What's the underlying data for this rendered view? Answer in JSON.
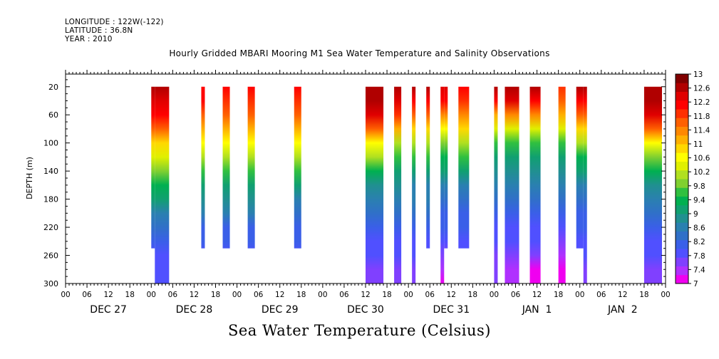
{
  "header": {
    "longitude": "LONGITUDE : 122W(-122)",
    "latitude": "LATITUDE : 36.8N",
    "year": "YEAR : 2010"
  },
  "footer_title": "Sea Water Temperature (Celsius)",
  "chart_data": {
    "type": "heatmap",
    "title": "Hourly Gridded MBARI Mooring M1 Sea Water Temperature and Salinity Observations",
    "xlabel": "",
    "ylabel": "DEPTH (m)",
    "colorbar_label": "Sea Water Temperature (Celsius)",
    "y_ticks": [
      20,
      60,
      100,
      140,
      180,
      220,
      260,
      300
    ],
    "ylim": [
      300,
      2
    ],
    "xlim_hours": [
      0,
      168
    ],
    "x_hour_ticks": [
      "00",
      "06",
      "12",
      "18",
      "00",
      "06",
      "12",
      "18",
      "00",
      "06",
      "12",
      "18",
      "00",
      "06",
      "12",
      "18",
      "00",
      "06",
      "12",
      "18",
      "00",
      "06",
      "12",
      "18",
      "00",
      "06",
      "12",
      "18",
      "00"
    ],
    "x_day_labels": [
      "DEC 27",
      "DEC 28",
      "DEC 29",
      "DEC 30",
      "DEC 31",
      "JAN  1",
      "JAN  2"
    ],
    "colorbar_ticks": [
      "13",
      "12.6",
      "12.2",
      "11.8",
      "11.4",
      "11",
      "10.6",
      "10.2",
      "9.8",
      "9.4",
      "9",
      "8.6",
      "8.2",
      "7.8",
      "7.4",
      "7"
    ],
    "colorbar_colors": [
      "#f000f0",
      "#b030ff",
      "#8040ff",
      "#5050ff",
      "#3a5fe8",
      "#3070c8",
      "#2a80b0",
      "#209090",
      "#10a070",
      "#00b050",
      "#30c040",
      "#80d030",
      "#b0e020",
      "#e0f000",
      "#ffff00",
      "#ffd800",
      "#ffb000",
      "#ff8800",
      "#ff6000",
      "#ff3000",
      "#ff0000",
      "#e00000",
      "#b00000",
      "#800000"
    ],
    "colorbar_range": [
      7,
      13
    ],
    "profile_depths": [
      20,
      40,
      60,
      80,
      100,
      120,
      140,
      160,
      180,
      200,
      220,
      240,
      260,
      280,
      300
    ],
    "observations": [
      {
        "start": 24,
        "end": 25,
        "bottom": 250,
        "profile": [
          12.5,
          12.3,
          12.0,
          11.5,
          10.8,
          10.3,
          9.9,
          9.4,
          9.0,
          8.6,
          8.3,
          8.1,
          7.9,
          7.8,
          7.8
        ]
      },
      {
        "start": 25,
        "end": 29,
        "bottom": 300,
        "profile": [
          12.5,
          12.3,
          12.0,
          11.5,
          10.8,
          10.3,
          9.9,
          9.4,
          9.0,
          8.6,
          8.3,
          8.1,
          7.9,
          7.8,
          7.8
        ]
      },
      {
        "start": 38,
        "end": 39,
        "bottom": 250,
        "profile": [
          12.2,
          12.0,
          11.7,
          11.2,
          10.6,
          10.1,
          9.6,
          9.2,
          8.8,
          8.5,
          8.2,
          8.0,
          7.9,
          7.8,
          7.8
        ]
      },
      {
        "start": 44,
        "end": 46,
        "bottom": 250,
        "profile": [
          12.0,
          11.8,
          11.6,
          11.1,
          10.6,
          10.1,
          9.6,
          9.2,
          8.8,
          8.5,
          8.2,
          8.0,
          7.9,
          7.8,
          7.8
        ]
      },
      {
        "start": 51,
        "end": 53,
        "bottom": 250,
        "profile": [
          12.0,
          11.8,
          11.6,
          11.1,
          10.5,
          10.0,
          9.5,
          9.1,
          8.8,
          8.5,
          8.2,
          8.0,
          7.9,
          7.8,
          7.8
        ]
      },
      {
        "start": 64,
        "end": 66,
        "bottom": 250,
        "profile": [
          12.0,
          11.8,
          11.5,
          11.0,
          10.5,
          10.0,
          9.5,
          9.1,
          8.7,
          8.4,
          8.2,
          8.0,
          7.9,
          7.8,
          7.8
        ]
      },
      {
        "start": 84,
        "end": 89,
        "bottom": 300,
        "profile": [
          12.6,
          12.5,
          12.3,
          11.6,
          10.6,
          10.0,
          9.3,
          8.9,
          8.6,
          8.3,
          8.1,
          7.9,
          7.8,
          7.7,
          7.7
        ]
      },
      {
        "start": 92,
        "end": 94,
        "bottom": 300,
        "profile": [
          12.5,
          12.3,
          11.8,
          11.0,
          10.2,
          9.6,
          9.1,
          8.8,
          8.5,
          8.3,
          8.1,
          7.9,
          7.8,
          7.7,
          7.7
        ]
      },
      {
        "start": 97,
        "end": 98,
        "bottom": 300,
        "profile": [
          12.5,
          12.2,
          11.6,
          10.8,
          10.0,
          9.5,
          9.0,
          8.7,
          8.5,
          8.3,
          8.1,
          7.9,
          7.8,
          7.7,
          7.7
        ]
      },
      {
        "start": 101,
        "end": 102,
        "bottom": 250,
        "profile": [
          12.5,
          12.2,
          11.6,
          10.8,
          10.0,
          9.5,
          9.0,
          8.7,
          8.5,
          8.3,
          8.1,
          7.9,
          7.8,
          7.7,
          7.7
        ]
      },
      {
        "start": 105,
        "end": 106,
        "bottom": 300,
        "profile": [
          12.4,
          12.0,
          11.4,
          10.7,
          9.9,
          9.4,
          9.0,
          8.7,
          8.4,
          8.2,
          8.0,
          7.8,
          7.6,
          7.4,
          7.2
        ]
      },
      {
        "start": 106,
        "end": 107,
        "bottom": 250,
        "profile": [
          12.4,
          12.0,
          11.4,
          10.7,
          9.9,
          9.4,
          9.0,
          8.7,
          8.4,
          8.2,
          8.0,
          7.8,
          7.6,
          7.4,
          7.2
        ]
      },
      {
        "start": 110,
        "end": 113,
        "bottom": 250,
        "profile": [
          12.1,
          11.8,
          11.4,
          10.8,
          10.1,
          9.5,
          9.0,
          8.7,
          8.4,
          8.2,
          8.0,
          7.9,
          7.8,
          7.7,
          7.7
        ]
      },
      {
        "start": 120,
        "end": 121,
        "bottom": 300,
        "profile": [
          12.6,
          12.2,
          11.2,
          10.3,
          9.6,
          9.1,
          8.8,
          8.5,
          8.3,
          8.1,
          7.9,
          7.8,
          7.7,
          7.6,
          7.5
        ]
      },
      {
        "start": 123,
        "end": 127,
        "bottom": 300,
        "profile": [
          12.7,
          12.4,
          11.4,
          10.4,
          9.7,
          9.1,
          8.8,
          8.5,
          8.3,
          8.1,
          7.9,
          7.8,
          7.6,
          7.4,
          7.3
        ]
      },
      {
        "start": 130,
        "end": 133,
        "bottom": 300,
        "profile": [
          12.5,
          12.1,
          11.3,
          10.4,
          9.7,
          9.1,
          8.8,
          8.5,
          8.3,
          8.1,
          7.9,
          7.8,
          7.5,
          7.2,
          7.0
        ]
      },
      {
        "start": 138,
        "end": 140,
        "bottom": 300,
        "profile": [
          11.9,
          11.6,
          11.2,
          10.4,
          9.6,
          9.1,
          8.8,
          8.5,
          8.3,
          8.1,
          7.9,
          7.7,
          7.4,
          7.2,
          7.1
        ]
      },
      {
        "start": 143,
        "end": 145,
        "bottom": 250,
        "profile": [
          12.5,
          12.2,
          11.6,
          10.8,
          10.0,
          9.4,
          9.0,
          8.7,
          8.4,
          8.2,
          8.0,
          7.9,
          7.8,
          7.7,
          7.7
        ]
      },
      {
        "start": 145,
        "end": 146,
        "bottom": 300,
        "profile": [
          12.5,
          12.2,
          11.6,
          10.8,
          10.0,
          9.4,
          9.0,
          8.7,
          8.4,
          8.2,
          8.0,
          7.9,
          7.8,
          7.7,
          7.7
        ]
      },
      {
        "start": 162,
        "end": 167,
        "bottom": 300,
        "profile": [
          12.7,
          12.6,
          12.3,
          11.6,
          10.7,
          9.9,
          9.3,
          8.9,
          8.6,
          8.3,
          8.1,
          7.9,
          7.8,
          7.7,
          7.7
        ]
      }
    ]
  }
}
